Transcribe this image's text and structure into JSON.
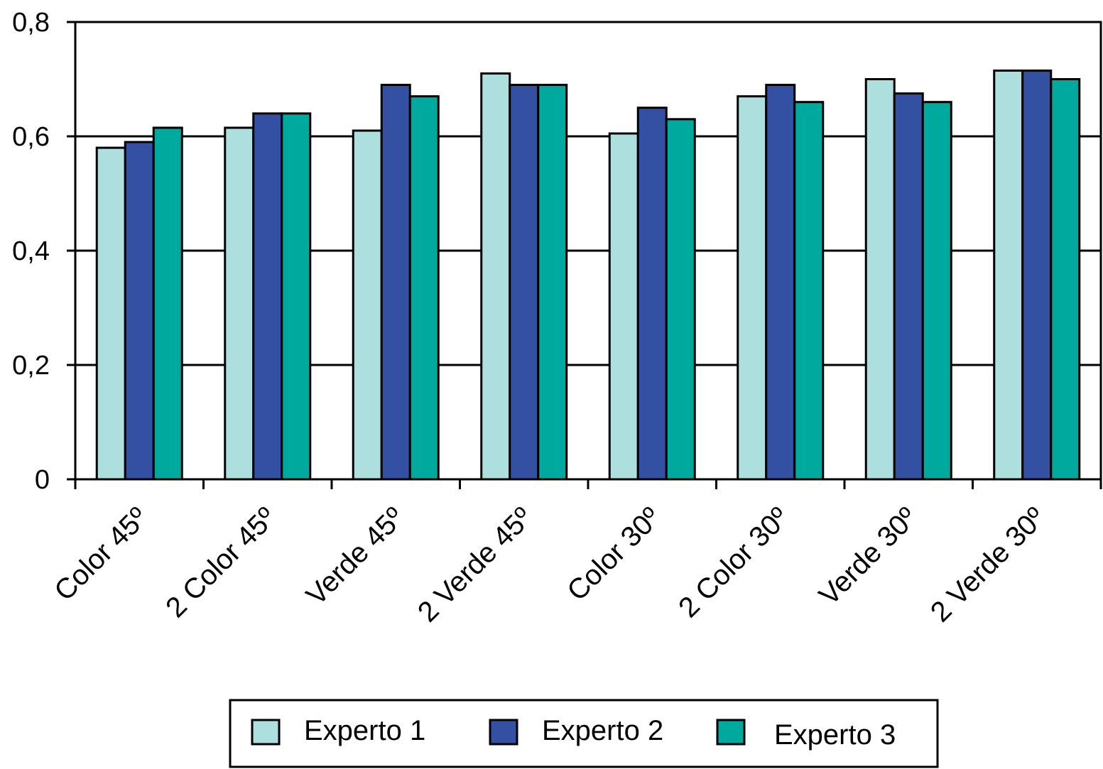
{
  "chart_data": {
    "type": "bar",
    "categories": [
      "Color 45º",
      "2 Color 45º",
      "Verde 45º",
      "2 Verde 45º",
      "Color 30º",
      "2 Color 30º",
      "Verde 30º",
      "2 Verde 30º"
    ],
    "series": [
      {
        "name": "Experto 1",
        "color": "#aedfdf",
        "values": [
          0.58,
          0.615,
          0.61,
          0.71,
          0.605,
          0.67,
          0.7,
          0.715
        ]
      },
      {
        "name": "Experto 2",
        "color": "#3450a3",
        "values": [
          0.59,
          0.64,
          0.69,
          0.69,
          0.65,
          0.69,
          0.675,
          0.715
        ]
      },
      {
        "name": "Experto 3",
        "color": "#00a99d",
        "values": [
          0.615,
          0.64,
          0.67,
          0.69,
          0.63,
          0.66,
          0.66,
          0.7
        ]
      }
    ],
    "ylim": [
      0,
      0.8
    ],
    "yticks": [
      0,
      0.2,
      0.4,
      0.6,
      0.8
    ],
    "ytick_labels": [
      "0",
      "0,2",
      "0,4",
      "0,6",
      "0,8"
    ],
    "grid": true,
    "legend_position": "bottom-center",
    "title": "",
    "xlabel": "",
    "ylabel": ""
  }
}
